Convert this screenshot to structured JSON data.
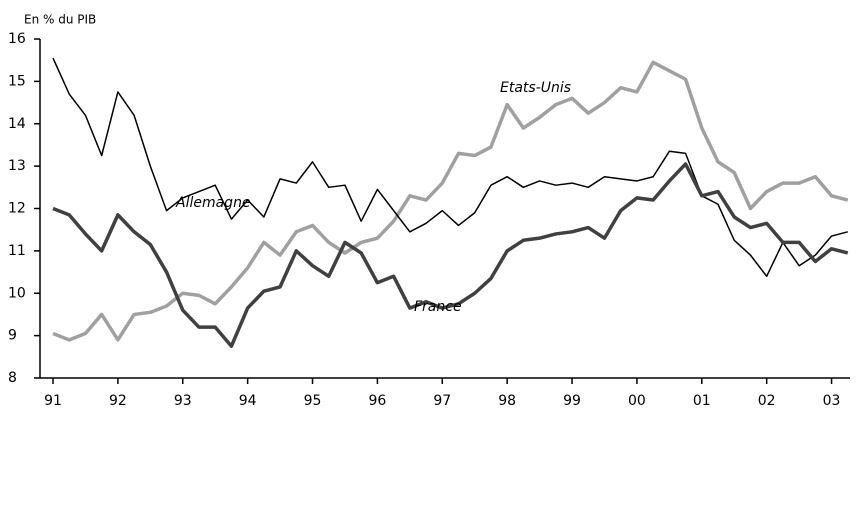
{
  "chart_data": {
    "type": "line",
    "y_label": "En % du PIB",
    "categories": [
      "91",
      null,
      null,
      null,
      "92",
      null,
      null,
      null,
      "93",
      null,
      null,
      null,
      "94",
      null,
      null,
      null,
      "95",
      null,
      null,
      null,
      "96",
      null,
      null,
      null,
      "97",
      null,
      null,
      null,
      "98",
      null,
      null,
      null,
      "99",
      null,
      null,
      null,
      "00",
      null,
      null,
      null,
      "01",
      null,
      null,
      null,
      "02",
      null,
      null,
      null,
      "03",
      null
    ],
    "ylim": [
      8,
      16
    ],
    "yticks": [
      8,
      9,
      10,
      11,
      12,
      13,
      14,
      15,
      16
    ],
    "series": [
      {
        "name": "Allemagne",
        "color": "#000000",
        "width": 1.5,
        "values": [
          15.55,
          14.7,
          14.2,
          13.25,
          14.75,
          14.2,
          13.0,
          11.95,
          12.25,
          12.4,
          12.55,
          11.75,
          12.2,
          11.8,
          12.7,
          12.6,
          13.1,
          12.5,
          12.55,
          11.7,
          12.45,
          11.95,
          11.45,
          11.65,
          11.95,
          11.6,
          11.9,
          12.55,
          12.75,
          12.5,
          12.65,
          12.55,
          12.6,
          12.5,
          12.75,
          12.7,
          12.65,
          12.75,
          13.35,
          13.3,
          12.3,
          12.1,
          11.25,
          10.9,
          10.4,
          11.2,
          10.65,
          10.9,
          11.35,
          11.45
        ]
      },
      {
        "name": "Etats-Unis",
        "color": "#a0a0a0",
        "width": 3.5,
        "values": [
          9.05,
          8.9,
          9.05,
          9.5,
          8.9,
          9.5,
          9.55,
          9.7,
          10.0,
          9.95,
          9.75,
          10.15,
          10.6,
          11.2,
          10.9,
          11.45,
          11.6,
          11.2,
          10.95,
          11.2,
          11.3,
          11.7,
          12.3,
          12.2,
          12.6,
          13.3,
          13.25,
          13.45,
          14.45,
          13.9,
          14.15,
          14.45,
          14.6,
          14.25,
          14.5,
          14.85,
          14.75,
          15.45,
          15.25,
          15.05,
          13.9,
          13.1,
          12.85,
          12.0,
          12.4,
          12.6,
          12.6,
          12.75,
          12.3,
          12.2
        ]
      },
      {
        "name": "France",
        "color": "#404040",
        "width": 3.5,
        "values": [
          12.0,
          11.85,
          11.4,
          11.0,
          11.85,
          11.45,
          11.15,
          10.5,
          9.6,
          9.2,
          9.2,
          8.75,
          9.65,
          10.05,
          10.15,
          11.0,
          10.65,
          10.4,
          11.2,
          10.95,
          10.25,
          10.4,
          9.65,
          9.8,
          9.65,
          9.75,
          10.0,
          10.35,
          11.0,
          11.25,
          11.3,
          11.4,
          11.45,
          11.55,
          11.3,
          11.95,
          12.25,
          12.2,
          12.65,
          13.05,
          12.3,
          12.4,
          11.8,
          11.55,
          11.65,
          11.2,
          11.2,
          10.75,
          11.05,
          10.95
        ]
      }
    ]
  }
}
